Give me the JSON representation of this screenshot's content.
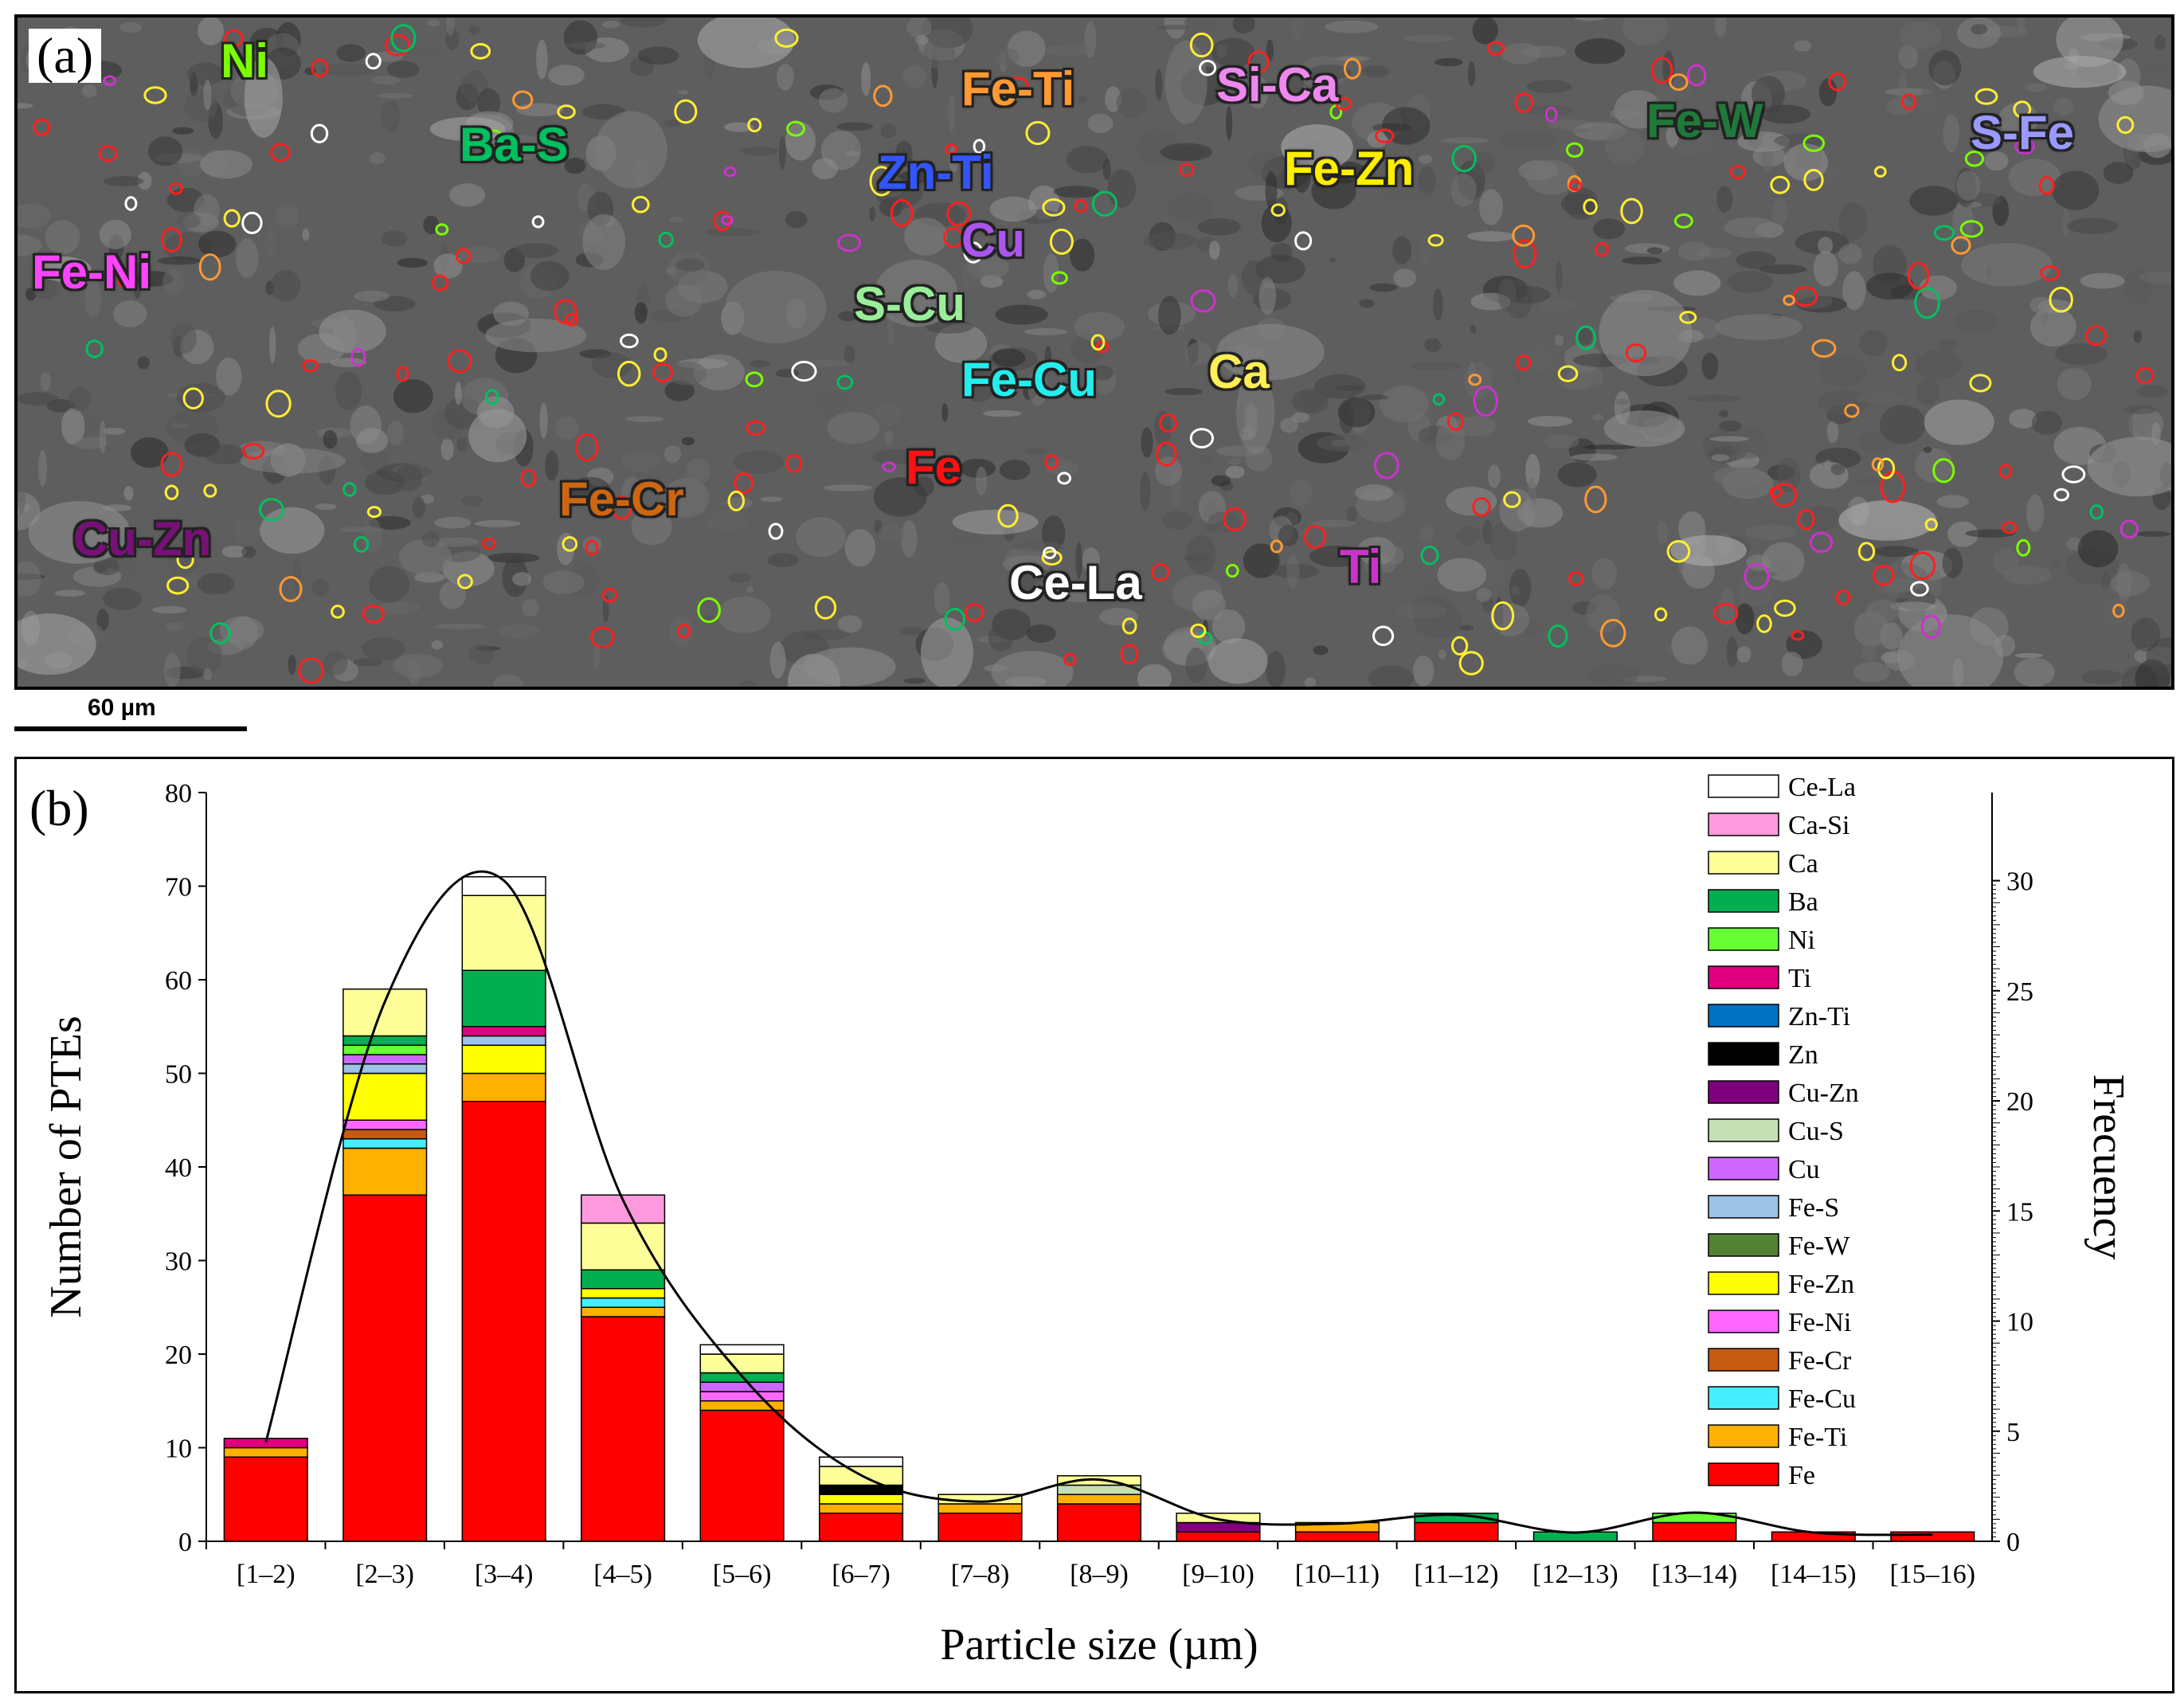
{
  "panel_a": {
    "letter": "(a)",
    "scale_bar": "60 µm",
    "labels": [
      {
        "text": "Ni",
        "color": "#7cfc00"
      },
      {
        "text": "Ba-S",
        "color": "#00c060"
      },
      {
        "text": "Fe-Ti",
        "color": "#ff9933"
      },
      {
        "text": "Si-Ca",
        "color": "#ee88ee"
      },
      {
        "text": "Zn-Ti",
        "color": "#3355ff"
      },
      {
        "text": "Fe-Zn",
        "color": "#ffee00"
      },
      {
        "text": "Fe-W",
        "color": "#1f7a3a"
      },
      {
        "text": "S-Fe",
        "color": "#9999ff"
      },
      {
        "text": "Fe-Ni",
        "color": "#ff44ff"
      },
      {
        "text": "Cu",
        "color": "#aa55ee"
      },
      {
        "text": "S-Cu",
        "color": "#99ee99"
      },
      {
        "text": "Fe-Cu",
        "color": "#22eeee"
      },
      {
        "text": "Ca",
        "color": "#ffee55"
      },
      {
        "text": "Fe",
        "color": "#ff1111"
      },
      {
        "text": "Fe-Cr",
        "color": "#cc6611"
      },
      {
        "text": "Cu-Zn",
        "color": "#771177"
      },
      {
        "text": "Ce-La",
        "color": "#ffffff"
      },
      {
        "text": "Ti",
        "color": "#cc33cc"
      }
    ]
  },
  "panel_b": {
    "letter": "(b)"
  },
  "chart_data": {
    "type": "bar",
    "stacked": true,
    "xlabel": "Particle size (µm)",
    "ylabel": "Number of PTEs",
    "y2label": "Frecuency",
    "ylim": [
      0,
      80
    ],
    "yticks": [
      0,
      10,
      20,
      30,
      40,
      50,
      60,
      70,
      80
    ],
    "y2lim": [
      0,
      34
    ],
    "y2ticks": [
      0,
      5,
      10,
      15,
      20,
      25,
      30
    ],
    "categories": [
      "[1–2)",
      "[2–3)",
      "[3–4)",
      "[4–5)",
      "[5–6)",
      "[6–7)",
      "[7–8)",
      "[8–9)",
      "[9–10)",
      "[10–11)",
      "[11–12)",
      "[12–13)",
      "[13–14)",
      "[14–15)",
      "[15–16)"
    ],
    "series": [
      {
        "name": "Fe",
        "color": "#ff0000",
        "values": [
          9,
          37,
          47,
          24,
          14,
          3,
          3,
          4,
          1,
          1,
          2,
          0,
          2,
          1,
          1
        ]
      },
      {
        "name": "Fe-Ti",
        "color": "#ffb000",
        "values": [
          1,
          5,
          3,
          1,
          1,
          1,
          1,
          1,
          0,
          1,
          0,
          0,
          0,
          0,
          0
        ]
      },
      {
        "name": "Fe-Cu",
        "color": "#44eeff",
        "values": [
          0,
          1,
          0,
          1,
          0,
          0,
          0,
          0,
          0,
          0,
          0,
          0,
          0,
          0,
          0
        ]
      },
      {
        "name": "Fe-Cr",
        "color": "#c55a11",
        "values": [
          0,
          1,
          0,
          0,
          0,
          0,
          0,
          0,
          0,
          0,
          0,
          0,
          0,
          0,
          0
        ]
      },
      {
        "name": "Fe-Ni",
        "color": "#ff66ff",
        "values": [
          0,
          1,
          0,
          0,
          1,
          0,
          0,
          0,
          0,
          0,
          0,
          0,
          0,
          0,
          0
        ]
      },
      {
        "name": "Fe-Zn",
        "color": "#ffff00",
        "values": [
          0,
          5,
          3,
          1,
          0,
          1,
          0,
          0,
          0,
          0,
          0,
          0,
          0,
          0,
          0
        ]
      },
      {
        "name": "Fe-W",
        "color": "#548235",
        "values": [
          0,
          0,
          0,
          0,
          0,
          0,
          0,
          0,
          0,
          0,
          0,
          0,
          0,
          0,
          0
        ]
      },
      {
        "name": "Fe-S",
        "color": "#9dc3e6",
        "values": [
          0,
          1,
          1,
          0,
          0,
          0,
          0,
          0,
          0,
          0,
          0,
          0,
          0,
          0,
          0
        ]
      },
      {
        "name": "Cu",
        "color": "#cc66ff",
        "values": [
          0,
          1,
          0,
          0,
          1,
          0,
          0,
          0,
          0,
          0,
          0,
          0,
          0,
          0,
          0
        ]
      },
      {
        "name": "Cu-S",
        "color": "#c5e0b4",
        "values": [
          0,
          0,
          0,
          0,
          0,
          0,
          0,
          1,
          0,
          0,
          0,
          0,
          0,
          0,
          0
        ]
      },
      {
        "name": "Cu-Zn",
        "color": "#7f007f",
        "values": [
          0,
          0,
          0,
          0,
          0,
          0,
          0,
          0,
          1,
          0,
          0,
          0,
          0,
          0,
          0
        ]
      },
      {
        "name": "Zn",
        "color": "#000000",
        "values": [
          0,
          0,
          0,
          0,
          0,
          1,
          0,
          0,
          0,
          0,
          0,
          0,
          0,
          0,
          0
        ]
      },
      {
        "name": "Zn-Ti",
        "color": "#0070c0",
        "values": [
          0,
          0,
          0,
          0,
          0,
          0,
          0,
          0,
          0,
          0,
          0,
          0,
          0,
          0,
          0
        ]
      },
      {
        "name": "Ti",
        "color": "#e0007f",
        "values": [
          1,
          0,
          1,
          0,
          0,
          0,
          0,
          0,
          0,
          0,
          0,
          0,
          0,
          0,
          0
        ]
      },
      {
        "name": "Ni",
        "color": "#66ff33",
        "values": [
          0,
          1,
          0,
          0,
          0,
          0,
          0,
          0,
          0,
          0,
          0,
          0,
          1,
          0,
          0
        ]
      },
      {
        "name": "Ba",
        "color": "#00b050",
        "values": [
          0,
          1,
          6,
          2,
          1,
          0,
          0,
          0,
          0,
          0,
          1,
          1,
          0,
          0,
          0
        ]
      },
      {
        "name": "Ca",
        "color": "#ffff99",
        "values": [
          0,
          5,
          8,
          5,
          2,
          2,
          1,
          1,
          1,
          0,
          0,
          0,
          0,
          0,
          0
        ]
      },
      {
        "name": "Ca-Si",
        "color": "#ff99dd",
        "values": [
          0,
          0,
          0,
          3,
          0,
          0,
          0,
          0,
          0,
          0,
          0,
          0,
          0,
          0,
          0
        ]
      },
      {
        "name": "Ce-La",
        "color": "#ffffff",
        "values": [
          0,
          0,
          2,
          0,
          1,
          1,
          0,
          0,
          0,
          0,
          0,
          0,
          0,
          0,
          0
        ]
      }
    ],
    "frequency_curve": [
      4.5,
      24.5,
      30.0,
      15.5,
      7.5,
      3.0,
      1.8,
      2.8,
      1.0,
      0.8,
      1.2,
      0.4,
      1.3,
      0.4,
      0.3
    ],
    "legend": {
      "placement": "top-right"
    }
  }
}
